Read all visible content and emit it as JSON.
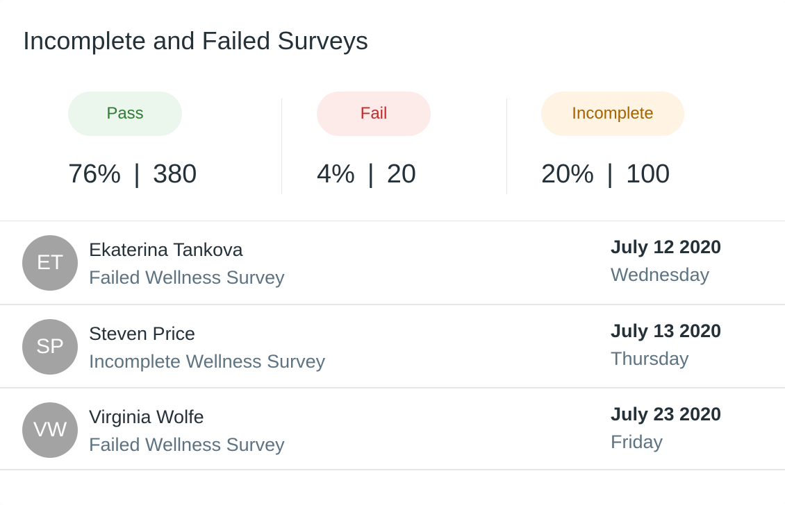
{
  "title": "Incomplete and Failed Surveys",
  "stats": [
    {
      "label": "Pass",
      "percent": "76%",
      "count": "380",
      "pill_bg": "#ebf6ec",
      "pill_fg": "#2e7d32"
    },
    {
      "label": "Fail",
      "percent": "4%",
      "count": "20",
      "pill_bg": "#fdebea",
      "pill_fg": "#c62828"
    },
    {
      "label": "Incomplete",
      "percent": "20%",
      "count": "100",
      "pill_bg": "#fff3e3",
      "pill_fg": "#a66300"
    }
  ],
  "separator": "|",
  "rows": [
    {
      "initials": "ET",
      "name": "Ekaterina Tankova",
      "subtitle": "Failed Wellness Survey",
      "date": "July 12 2020",
      "day": "Wednesday"
    },
    {
      "initials": "SP",
      "name": "Steven Price",
      "subtitle": "Incomplete Wellness Survey",
      "date": "July 13 2020",
      "day": "Thursday"
    },
    {
      "initials": "VW",
      "name": "Virginia Wolfe",
      "subtitle": "Failed Wellness Survey",
      "date": "July 23 2020",
      "day": "Friday"
    }
  ],
  "colors": {
    "avatar_bg": "#a3a3a3",
    "text_primary": "#243139",
    "text_secondary": "#5d7382"
  }
}
